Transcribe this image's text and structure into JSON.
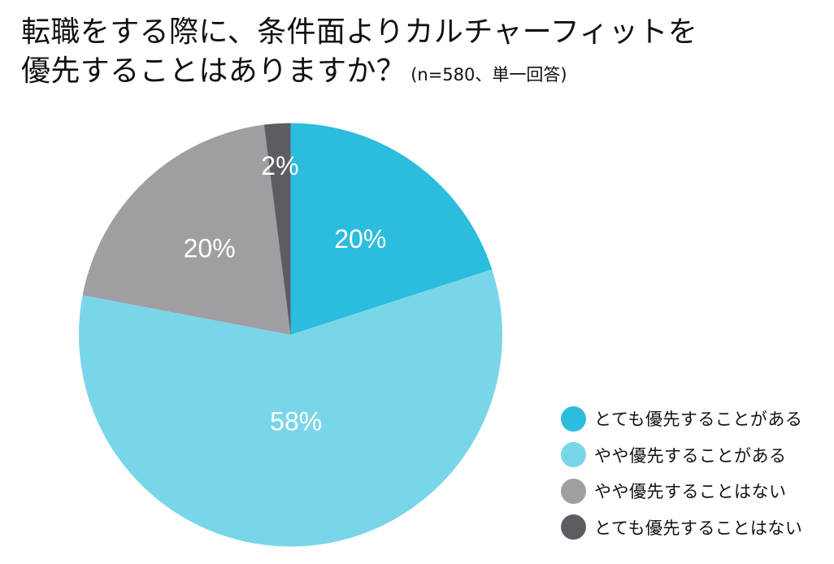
{
  "title": {
    "line1": "転職をする際に、条件面よりカルチャーフィットを",
    "line2": "優先することはありますか？",
    "subtitle": "(n=580、単一回答)"
  },
  "legend": {
    "items": [
      {
        "label": "とても優先することがある",
        "color": "#2BBCDE"
      },
      {
        "label": "やや優先することがある",
        "color": "#79D6E9"
      },
      {
        "label": "やや優先することはない",
        "color": "#A09EA3"
      },
      {
        "label": "とても優先することはない",
        "color": "#5E5C63"
      }
    ]
  },
  "slice_labels": [
    "20%",
    "58%",
    "20%",
    "2%"
  ],
  "chart_data": {
    "type": "pie",
    "title": "転職をする際に、条件面よりカルチャーフィットを優先することはありますか？",
    "subtitle": "(n=580、単一回答)",
    "sample_size": 580,
    "categories": [
      "とても優先することがある",
      "やや優先することがある",
      "やや優先することはない",
      "とても優先することはない"
    ],
    "values": [
      20,
      58,
      20,
      2
    ],
    "unit": "%",
    "colors": [
      "#2BBCDE",
      "#79D6E9",
      "#A09EA3",
      "#5E5C63"
    ],
    "start_angle": "12 o'clock",
    "direction": "clockwise",
    "legend_position": "bottom-right"
  }
}
